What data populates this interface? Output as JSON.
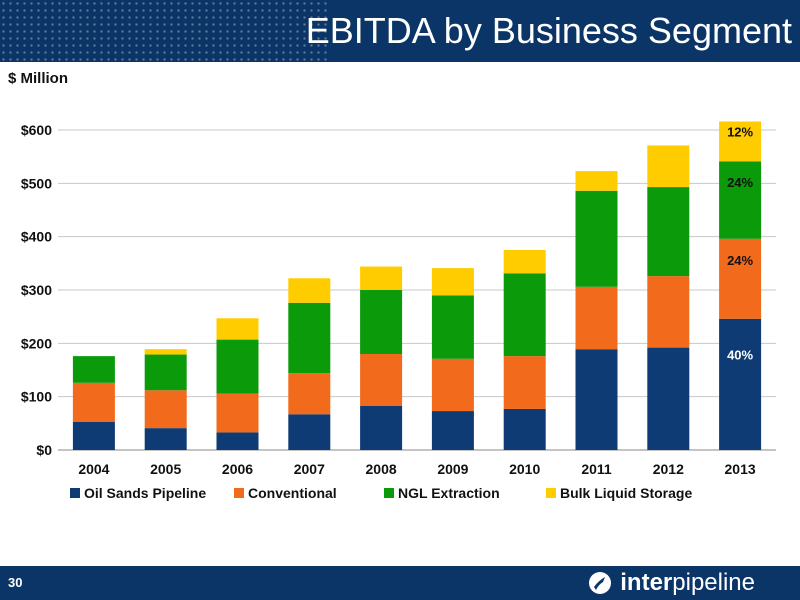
{
  "header": {
    "title": "EBITDA by Business Segment"
  },
  "unit_label": "$ Million",
  "footer": {
    "page_number": "30",
    "logo_part1": "inter",
    "logo_part2": "pipeline"
  },
  "colors": {
    "header_bg": "#0b3566",
    "series": [
      "#0e3b73",
      "#f26a1b",
      "#0a9a0a",
      "#ffcc00"
    ]
  },
  "chart_data": {
    "type": "bar",
    "stacked": true,
    "categories": [
      "2004",
      "2005",
      "2006",
      "2007",
      "2008",
      "2009",
      "2010",
      "2011",
      "2012",
      "2013"
    ],
    "series": [
      {
        "name": "Oil Sands Pipeline",
        "values": [
          53,
          41,
          33,
          67,
          83,
          73,
          77,
          189,
          192,
          246
        ]
      },
      {
        "name": "Conventional",
        "values": [
          73,
          71,
          73,
          77,
          97,
          98,
          99,
          117,
          134,
          150
        ]
      },
      {
        "name": "NGL Extraction",
        "values": [
          50,
          67,
          101,
          132,
          120,
          119,
          155,
          180,
          167,
          145
        ]
      },
      {
        "name": "Bulk Liquid Storage",
        "values": [
          0,
          10,
          40,
          46,
          44,
          51,
          44,
          37,
          78,
          75
        ]
      }
    ],
    "annotations": [
      {
        "category": "2013",
        "series": "Oil Sands Pipeline",
        "text": "40%"
      },
      {
        "category": "2013",
        "series": "Conventional",
        "text": "24%"
      },
      {
        "category": "2013",
        "series": "NGL Extraction",
        "text": "24%"
      },
      {
        "category": "2013",
        "series": "Bulk Liquid Storage",
        "text": "12%"
      }
    ],
    "ylim": [
      0,
      600
    ],
    "yticks": [
      0,
      100,
      200,
      300,
      400,
      500,
      600
    ],
    "ytick_labels": [
      "$0",
      "$100",
      "$200",
      "$300",
      "$400",
      "$500",
      "$600"
    ],
    "grid": true,
    "legend": "bottom",
    "xlabel": "",
    "ylabel": "$ Million"
  }
}
